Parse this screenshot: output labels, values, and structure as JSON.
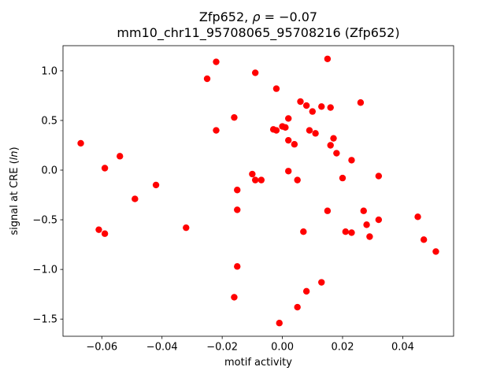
{
  "chart_data": {
    "type": "scatter",
    "title_parts": {
      "prefix": "Zfp652, ",
      "rho": "ρ",
      "suffix": " = −0.07"
    },
    "title_line2": "mm10_chr11_95708065_95708216 (Zfp652)",
    "xlabel": "motif activity",
    "ylabel_parts": {
      "pre": "signal at CRE (",
      "italic": "ln",
      "post": ")"
    },
    "xlim": [
      -0.0729,
      0.0569
    ],
    "ylim": [
      -1.673,
      1.253
    ],
    "xticks": [
      -0.06,
      -0.04,
      -0.02,
      0.0,
      0.02,
      0.04
    ],
    "yticks": [
      -1.5,
      -1.0,
      -0.5,
      0.0,
      0.5,
      1.0
    ],
    "marker_color": "#ff0000",
    "marker_radius": 4.2,
    "points": [
      [
        -0.067,
        0.27
      ],
      [
        -0.061,
        -0.6
      ],
      [
        -0.059,
        -0.64
      ],
      [
        -0.059,
        0.02
      ],
      [
        -0.054,
        0.14
      ],
      [
        -0.049,
        -0.29
      ],
      [
        -0.042,
        -0.15
      ],
      [
        -0.032,
        -0.58
      ],
      [
        -0.025,
        0.92
      ],
      [
        -0.022,
        1.09
      ],
      [
        -0.022,
        0.4
      ],
      [
        -0.016,
        0.53
      ],
      [
        -0.015,
        -0.2
      ],
      [
        -0.015,
        -0.4
      ],
      [
        -0.015,
        -0.97
      ],
      [
        -0.016,
        -1.28
      ],
      [
        -0.009,
        0.98
      ],
      [
        -0.01,
        -0.04
      ],
      [
        -0.009,
        -0.1
      ],
      [
        -0.007,
        -0.1
      ],
      [
        -0.002,
        0.82
      ],
      [
        -0.003,
        0.41
      ],
      [
        -0.002,
        0.4
      ],
      [
        0.0,
        0.44
      ],
      [
        0.001,
        0.43
      ],
      [
        0.002,
        0.52
      ],
      [
        0.002,
        0.3
      ],
      [
        0.004,
        0.26
      ],
      [
        0.002,
        -0.01
      ],
      [
        0.005,
        -0.1
      ],
      [
        0.007,
        -0.62
      ],
      [
        -0.001,
        -1.54
      ],
      [
        0.005,
        -1.38
      ],
      [
        0.008,
        -1.22
      ],
      [
        0.006,
        0.69
      ],
      [
        0.008,
        0.65
      ],
      [
        0.01,
        0.59
      ],
      [
        0.013,
        0.64
      ],
      [
        0.009,
        0.4
      ],
      [
        0.011,
        0.37
      ],
      [
        0.015,
        1.12
      ],
      [
        0.016,
        0.63
      ],
      [
        0.016,
        0.25
      ],
      [
        0.017,
        0.32
      ],
      [
        0.018,
        0.17
      ],
      [
        0.015,
        -0.41
      ],
      [
        0.013,
        -1.13
      ],
      [
        0.02,
        -0.08
      ],
      [
        0.021,
        -0.62
      ],
      [
        0.023,
        -0.63
      ],
      [
        0.023,
        0.1
      ],
      [
        0.026,
        0.68
      ],
      [
        0.027,
        -0.41
      ],
      [
        0.028,
        -0.55
      ],
      [
        0.029,
        -0.67
      ],
      [
        0.032,
        -0.06
      ],
      [
        0.032,
        -0.5
      ],
      [
        0.045,
        -0.47
      ],
      [
        0.047,
        -0.7
      ],
      [
        0.051,
        -0.82
      ]
    ]
  }
}
